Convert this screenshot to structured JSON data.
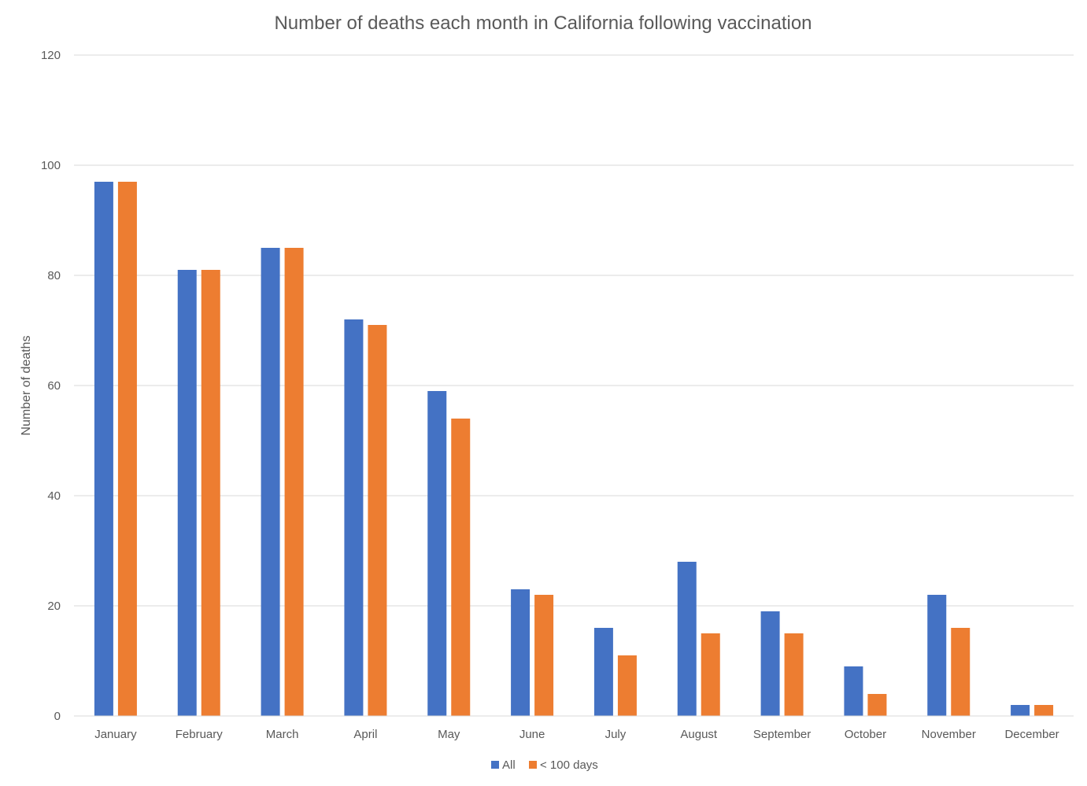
{
  "chart_data": {
    "type": "bar",
    "title": "Number of deaths each month in California following vaccination",
    "xlabel": "",
    "ylabel": "Number of deaths",
    "ylim": [
      0,
      120
    ],
    "yticks": [
      0,
      20,
      40,
      60,
      80,
      100,
      120
    ],
    "grid": true,
    "legend_position": "bottom",
    "categories": [
      "January",
      "February",
      "March",
      "April",
      "May",
      "June",
      "July",
      "August",
      "September",
      "October",
      "November",
      "December"
    ],
    "series": [
      {
        "name": "All",
        "color": "#4472C4",
        "values": [
          97,
          81,
          85,
          72,
          59,
          23,
          16,
          28,
          19,
          9,
          22,
          2
        ]
      },
      {
        "name": "< 100 days",
        "color": "#ED7D31",
        "values": [
          97,
          81,
          85,
          71,
          54,
          22,
          11,
          15,
          15,
          4,
          16,
          2
        ]
      }
    ]
  }
}
